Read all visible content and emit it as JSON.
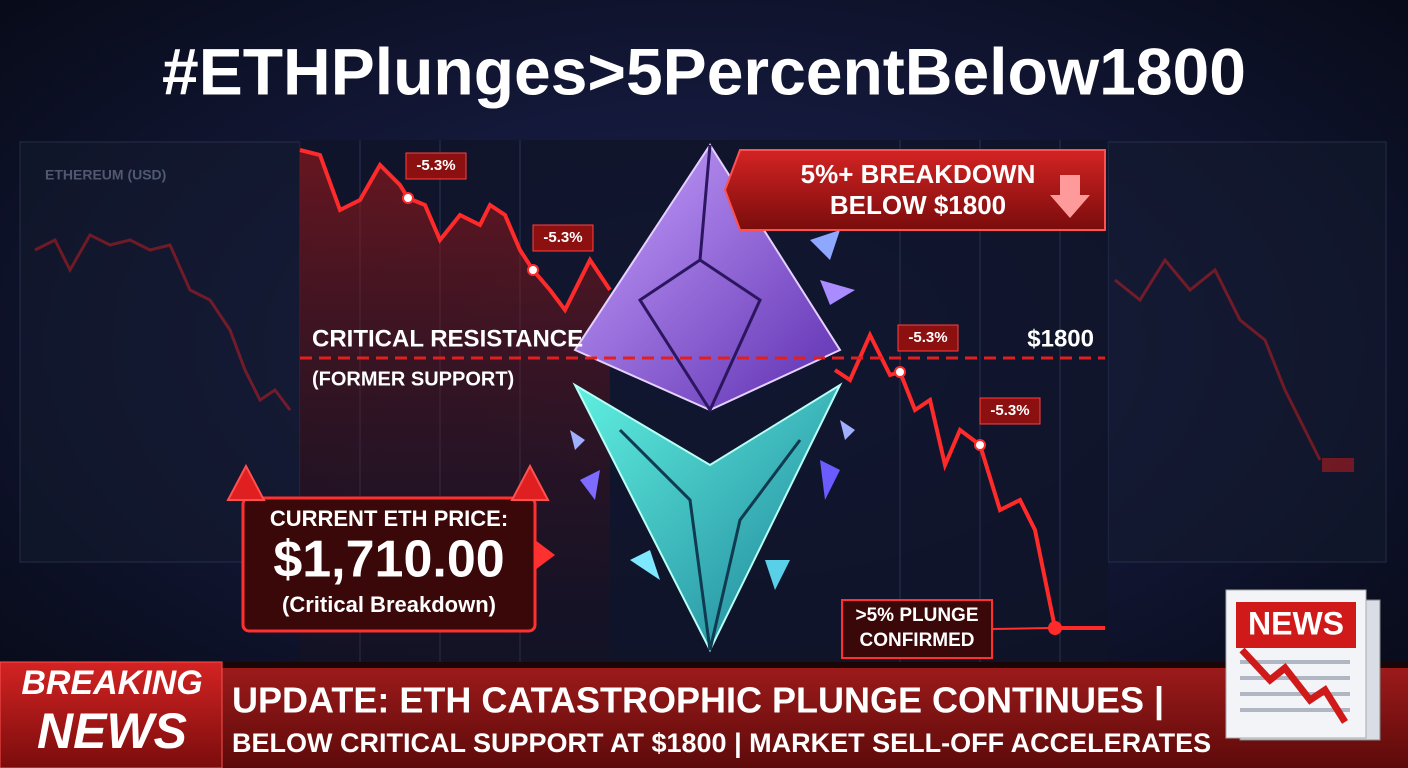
{
  "header": {
    "title": "#ETHPlunges>5PercentBelow1800"
  },
  "side_panel": {
    "label": "ETHEREUM (USD)"
  },
  "annotations": {
    "drops": [
      "-5.3%",
      "-5.3%",
      "-5.3%",
      "-5.3%"
    ],
    "breakdown": [
      "5%+ BREAKDOWN",
      "BELOW $1800"
    ],
    "resistance": [
      "CRITICAL RESISTANCE",
      "(FORMER SUPPORT)"
    ],
    "level": "$1800",
    "plunge": [
      ">5% PLUNGE",
      "CONFIRMED"
    ]
  },
  "price_box": {
    "heading": "CURRENT ETH PRICE:",
    "price": "$1,710.00",
    "note": "(Critical Breakdown)"
  },
  "ticker": {
    "tag": [
      "BREAKING",
      "NEWS"
    ],
    "lines": [
      "UPDATE: ETH CATASTROPHIC PLUNGE CONTINUES |",
      "BELOW CRITICAL SUPPORT AT $1800 | MARKET SELL-OFF ACCELERATES"
    ]
  },
  "news_icon": {
    "label": "NEWS"
  }
}
